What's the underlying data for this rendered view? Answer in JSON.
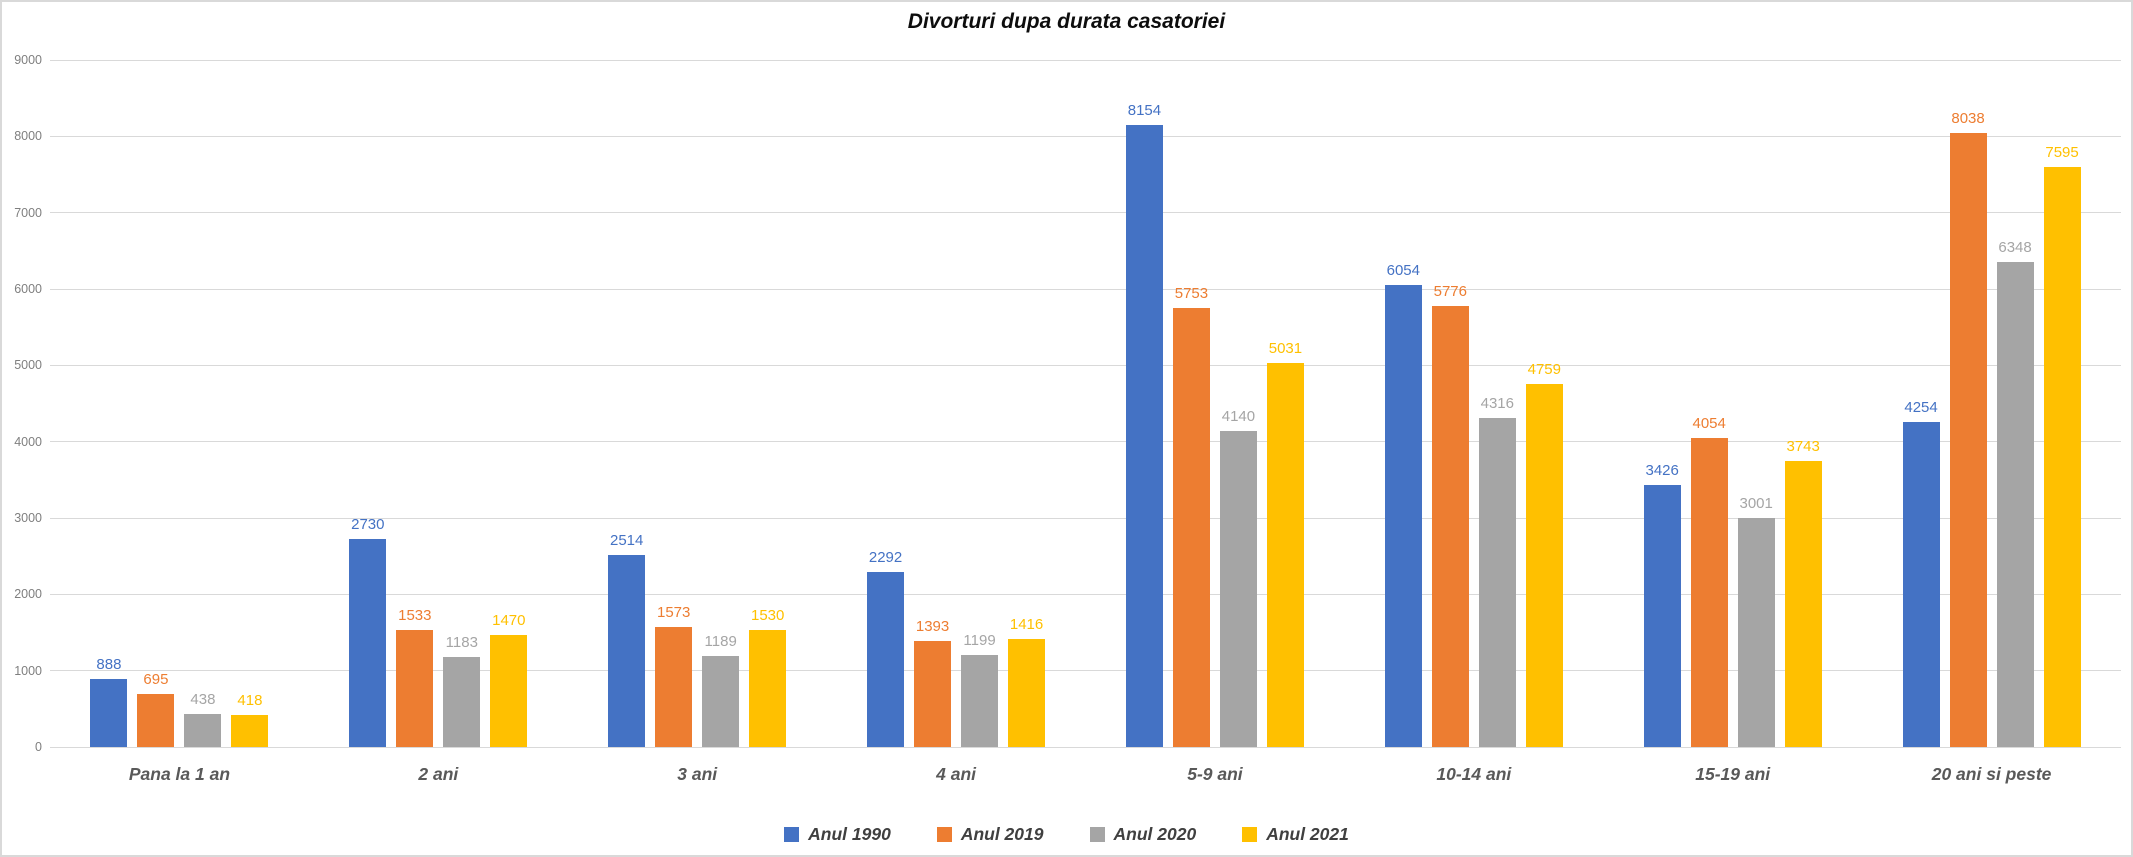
{
  "chart_data": {
    "type": "bar",
    "title": "Divorturi dupa durata casatoriei",
    "categories": [
      "Pana la 1 an",
      "2 ani",
      "3 ani",
      "4 ani",
      "5-9 ani",
      "10-14 ani",
      "15-19 ani",
      "20 ani si peste"
    ],
    "series": [
      {
        "name": "Anul 1990",
        "color": "#4472C4",
        "values": [
          888,
          2730,
          2514,
          2292,
          8154,
          6054,
          3426,
          4254
        ]
      },
      {
        "name": "Anul 2019",
        "color": "#ED7D31",
        "values": [
          695,
          1533,
          1573,
          1393,
          5753,
          5776,
          4054,
          8038
        ]
      },
      {
        "name": "Anul 2020",
        "color": "#A5A5A5",
        "values": [
          438,
          1183,
          1189,
          1199,
          4140,
          4316,
          3001,
          6348
        ]
      },
      {
        "name": "Anul 2021",
        "color": "#FFC000",
        "values": [
          418,
          1470,
          1530,
          1416,
          5031,
          4759,
          3743,
          7595
        ]
      }
    ],
    "xlabel": "",
    "ylabel": "",
    "ylim": [
      0,
      9000
    ],
    "ytick_step": 1000,
    "yticks": [
      0,
      1000,
      2000,
      3000,
      4000,
      5000,
      6000,
      7000,
      8000,
      9000
    ],
    "grid": true,
    "gridline_color": "#D9D9D9",
    "axis_tick_color": "#7F7F7F",
    "category_label_color": "#595959",
    "legend_position": "bottom",
    "data_labels": "series-colored",
    "background": "#FFFFFF"
  }
}
